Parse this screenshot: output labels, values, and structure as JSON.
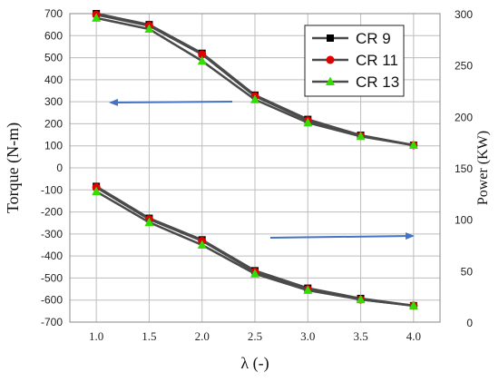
{
  "chart_data": {
    "type": "line",
    "xlabel": "λ (-)",
    "ylabel_left": "Torque (N-m)",
    "ylabel_right": "Power (KW)",
    "x": [
      1.0,
      1.5,
      2.0,
      2.5,
      3.0,
      3.5,
      4.0
    ],
    "x_tick_labels": [
      "1.0",
      "1.5",
      "2.0",
      "2.5",
      "3.0",
      "3.5",
      "4.0"
    ],
    "xlim": [
      0.75,
      4.25
    ],
    "ylim_left": [
      -700,
      700
    ],
    "yticks_left": [
      "-700",
      "-600",
      "-500",
      "-400",
      "-300",
      "-200",
      "-100",
      "0",
      "100",
      "200",
      "300",
      "400",
      "500",
      "600",
      "700"
    ],
    "ylim_right": [
      0,
      300
    ],
    "yticks_right": [
      "0",
      "50",
      "100",
      "150",
      "200",
      "250",
      "300"
    ],
    "grid": true,
    "legend_position": "top-right",
    "torque_series": [
      {
        "name": "CR 9",
        "marker": "square",
        "marker_color": "#000000",
        "line_color": "#4a4a4a",
        "values": [
          700,
          650,
          520,
          330,
          220,
          148,
          103
        ]
      },
      {
        "name": "CR 11",
        "marker": "circle",
        "marker_color": "#e00000",
        "line_color": "#4a4a4a",
        "values": [
          695,
          645,
          515,
          325,
          215,
          145,
          103
        ]
      },
      {
        "name": "CR 13",
        "marker": "triangle",
        "marker_color": "#33dd00",
        "line_color": "#4a4a4a",
        "values": [
          680,
          630,
          485,
          310,
          205,
          143,
          103
        ]
      }
    ],
    "power_series": [
      {
        "name": "CR 9",
        "marker": "square",
        "marker_color": "#000000",
        "line_color": "#4a4a4a",
        "values": [
          132,
          101,
          80,
          50,
          33,
          23,
          16
        ]
      },
      {
        "name": "CR 11",
        "marker": "circle",
        "marker_color": "#e00000",
        "line_color": "#4a4a4a",
        "values": [
          131,
          100,
          79,
          49,
          32,
          22,
          16
        ]
      },
      {
        "name": "CR 13",
        "marker": "triangle",
        "marker_color": "#33dd00",
        "line_color": "#4a4a4a",
        "values": [
          127,
          97,
          75,
          47,
          31,
          22,
          16
        ]
      }
    ],
    "annotations": [
      {
        "type": "arrow",
        "direction": "left",
        "meaning": "torque curves read on left axis",
        "color": "#4472c4"
      },
      {
        "type": "arrow",
        "direction": "right",
        "meaning": "power curves read on right axis",
        "color": "#4472c4"
      }
    ]
  }
}
